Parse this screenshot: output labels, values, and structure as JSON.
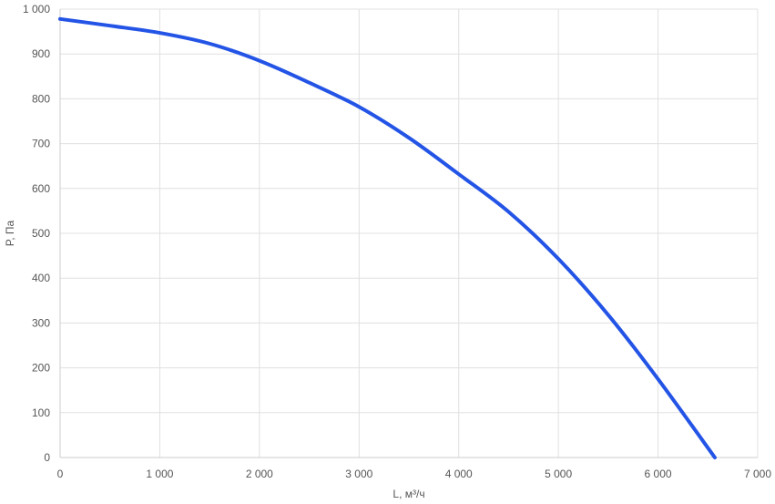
{
  "chart_data": {
    "type": "line",
    "title": "",
    "xlabel": "L, м³/ч",
    "ylabel": "P, Па",
    "xlim": [
      0,
      7000
    ],
    "ylim": [
      0,
      1000
    ],
    "x_ticks": [
      0,
      1000,
      2000,
      3000,
      4000,
      5000,
      6000,
      7000
    ],
    "x_tick_labels": [
      "0",
      "1 000",
      "2 000",
      "3 000",
      "4 000",
      "5 000",
      "6 000",
      "7 000"
    ],
    "y_ticks": [
      0,
      100,
      200,
      300,
      400,
      500,
      600,
      700,
      800,
      900,
      1000
    ],
    "y_tick_labels": [
      "0",
      "100",
      "200",
      "300",
      "400",
      "500",
      "600",
      "700",
      "800",
      "900",
      "1 000"
    ],
    "grid": true,
    "legend": "none",
    "series": [
      {
        "color": "#2354e6",
        "x": [
          0,
          500,
          1000,
          1500,
          2000,
          2500,
          3000,
          3500,
          4000,
          4500,
          5000,
          5500,
          6000,
          6570
        ],
        "y": [
          978,
          963,
          947,
          923,
          885,
          836,
          782,
          713,
          632,
          548,
          443,
          318,
          175,
          0
        ]
      }
    ]
  }
}
